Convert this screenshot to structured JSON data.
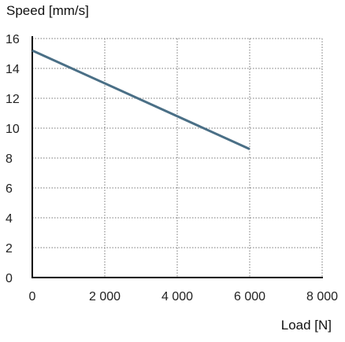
{
  "chart_data": {
    "type": "line",
    "title": "",
    "xlabel": "Load [N]",
    "ylabel": "Speed [mm/s]",
    "xlim": [
      0,
      8000
    ],
    "ylim": [
      0,
      16
    ],
    "grid": true,
    "x_ticks": [
      0,
      2000,
      4000,
      6000,
      8000
    ],
    "x_tick_labels": [
      "0",
      "2 000",
      "4 000",
      "6 000",
      "8 000"
    ],
    "y_ticks": [
      0,
      2,
      4,
      6,
      8,
      10,
      12,
      14,
      16
    ],
    "y_tick_labels": [
      "0",
      "2",
      "4",
      "6",
      "8",
      "10",
      "12",
      "14",
      "16"
    ],
    "series": [
      {
        "x": [
          0,
          6000
        ],
        "y": [
          15.2,
          8.6
        ]
      }
    ],
    "colors": {
      "series": "#4a6f86",
      "grid": "#777777",
      "axis": "#000000"
    }
  }
}
